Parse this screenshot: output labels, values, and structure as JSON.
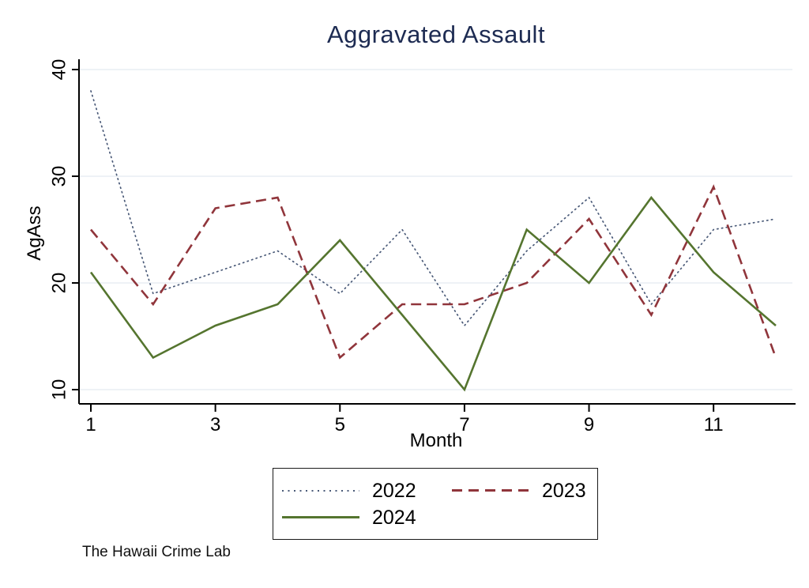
{
  "chart_data": {
    "type": "line",
    "title": "Aggravated Assault",
    "title_color": "#1d2b52",
    "xlabel": "Month",
    "ylabel": "AgAss",
    "caption": "The Hawaii Crime Lab",
    "x": [
      1,
      2,
      3,
      4,
      5,
      6,
      7,
      8,
      9,
      10,
      11,
      12
    ],
    "xlim": [
      1,
      12
    ],
    "ylim": [
      10,
      40
    ],
    "x_ticks": [
      1,
      3,
      5,
      7,
      9,
      11
    ],
    "y_ticks": [
      10,
      20,
      30,
      40
    ],
    "grid": "horizontal",
    "gridline_color": "#e9eef3",
    "axis_color": "#000000",
    "legend_position": "bottom",
    "series": [
      {
        "name": "2022",
        "style": "dotted",
        "color": "#4a5a78",
        "values": [
          38,
          19,
          21,
          23,
          19,
          25,
          16,
          23,
          28,
          18,
          25,
          26
        ]
      },
      {
        "name": "2023",
        "style": "dashed",
        "color": "#90353b",
        "values": [
          25,
          18,
          27,
          28,
          13,
          18,
          18,
          20,
          26,
          17,
          29,
          13
        ]
      },
      {
        "name": "2024",
        "style": "solid",
        "color": "#55752f",
        "values": [
          21,
          13,
          16,
          18,
          24,
          17,
          10,
          25,
          20,
          28,
          21,
          16
        ]
      }
    ]
  }
}
